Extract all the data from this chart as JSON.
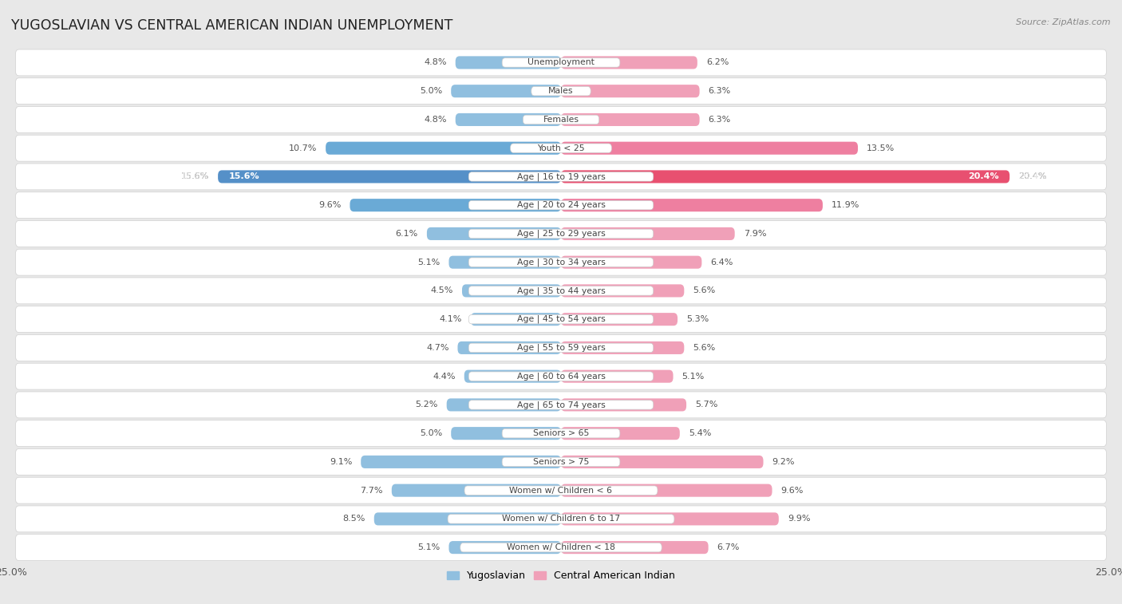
{
  "title": "YUGOSLAVIAN VS CENTRAL AMERICAN INDIAN UNEMPLOYMENT",
  "source": "Source: ZipAtlas.com",
  "background_color": "#e8e8e8",
  "row_bg": "#ffffff",
  "row_border": "#d0d0d0",
  "left_color": "#90bfdf",
  "right_color": "#f0a0b8",
  "left_color_highlight": "#6aaad6",
  "right_color_highlight": "#ee7fa0",
  "left_color_strong": "#5590c8",
  "right_color_strong": "#e85070",
  "categories": [
    "Unemployment",
    "Males",
    "Females",
    "Youth < 25",
    "Age | 16 to 19 years",
    "Age | 20 to 24 years",
    "Age | 25 to 29 years",
    "Age | 30 to 34 years",
    "Age | 35 to 44 years",
    "Age | 45 to 54 years",
    "Age | 55 to 59 years",
    "Age | 60 to 64 years",
    "Age | 65 to 74 years",
    "Seniors > 65",
    "Seniors > 75",
    "Women w/ Children < 6",
    "Women w/ Children 6 to 17",
    "Women w/ Children < 18"
  ],
  "left_values": [
    4.8,
    5.0,
    4.8,
    10.7,
    15.6,
    9.6,
    6.1,
    5.1,
    4.5,
    4.1,
    4.7,
    4.4,
    5.2,
    5.0,
    9.1,
    7.7,
    8.5,
    5.1
  ],
  "right_values": [
    6.2,
    6.3,
    6.3,
    13.5,
    20.4,
    11.9,
    7.9,
    6.4,
    5.6,
    5.3,
    5.6,
    5.1,
    5.7,
    5.4,
    9.2,
    9.6,
    9.9,
    6.7
  ],
  "max_val": 25.0,
  "legend_left": "Yugoslavian",
  "legend_right": "Central American Indian",
  "highlight_indices": [
    3,
    4,
    5
  ],
  "strong_index": 4
}
